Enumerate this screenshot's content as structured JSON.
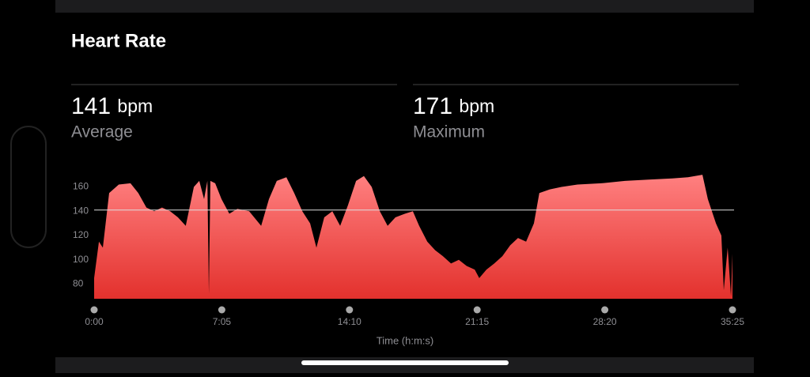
{
  "title": "Heart Rate",
  "stats": [
    {
      "value": 141,
      "unit": "bpm",
      "label": "Average"
    },
    {
      "value": 171,
      "unit": "bpm",
      "label": "Maximum"
    }
  ],
  "chart_data": {
    "type": "area",
    "color": "#f0403c",
    "x_label": "Time (h:m:s)",
    "x": [
      0,
      16,
      29,
      50,
      82,
      121,
      147,
      174,
      200,
      226,
      253,
      279,
      305,
      332,
      350,
      366,
      377,
      382,
      387,
      403,
      424,
      450,
      477,
      516,
      556,
      582,
      608,
      640,
      666,
      693,
      719,
      740,
      766,
      793,
      819,
      845,
      872,
      898,
      924,
      951,
      977,
      1003,
      1035,
      1061,
      1082,
      1109,
      1135,
      1161,
      1188,
      1214,
      1240,
      1267,
      1282,
      1306,
      1332,
      1359,
      1385,
      1411,
      1438,
      1464,
      1482,
      1517,
      1556,
      1609,
      1688,
      1767,
      1846,
      1925,
      1977,
      2025,
      2043,
      2070,
      2088,
      2096,
      2109,
      2120,
      2125
    ],
    "values": [
      85,
      115,
      110,
      155,
      162,
      163,
      155,
      143,
      140,
      143,
      140,
      135,
      128,
      160,
      165,
      150,
      165,
      72,
      165,
      163,
      150,
      138,
      142,
      140,
      128,
      150,
      165,
      168,
      155,
      140,
      130,
      110,
      135,
      140,
      128,
      145,
      165,
      169,
      160,
      140,
      128,
      135,
      138,
      140,
      128,
      115,
      108,
      103,
      97,
      100,
      95,
      92,
      85,
      92,
      97,
      103,
      112,
      118,
      115,
      130,
      155,
      158,
      160,
      162,
      163,
      165,
      166,
      167,
      168,
      170,
      150,
      130,
      120,
      75,
      110,
      70,
      105
    ],
    "xlim": [
      0,
      2125
    ],
    "xticks": [
      {
        "value": 0,
        "label": "0:00"
      },
      {
        "value": 425,
        "label": "7:05"
      },
      {
        "value": 850,
        "label": "14:10"
      },
      {
        "value": 1275,
        "label": "21:15"
      },
      {
        "value": 1700,
        "label": "28:20"
      },
      {
        "value": 2125,
        "label": "35:25"
      }
    ],
    "ylim": [
      68,
      174
    ],
    "yticks": [
      80,
      100,
      120,
      140,
      160
    ]
  }
}
